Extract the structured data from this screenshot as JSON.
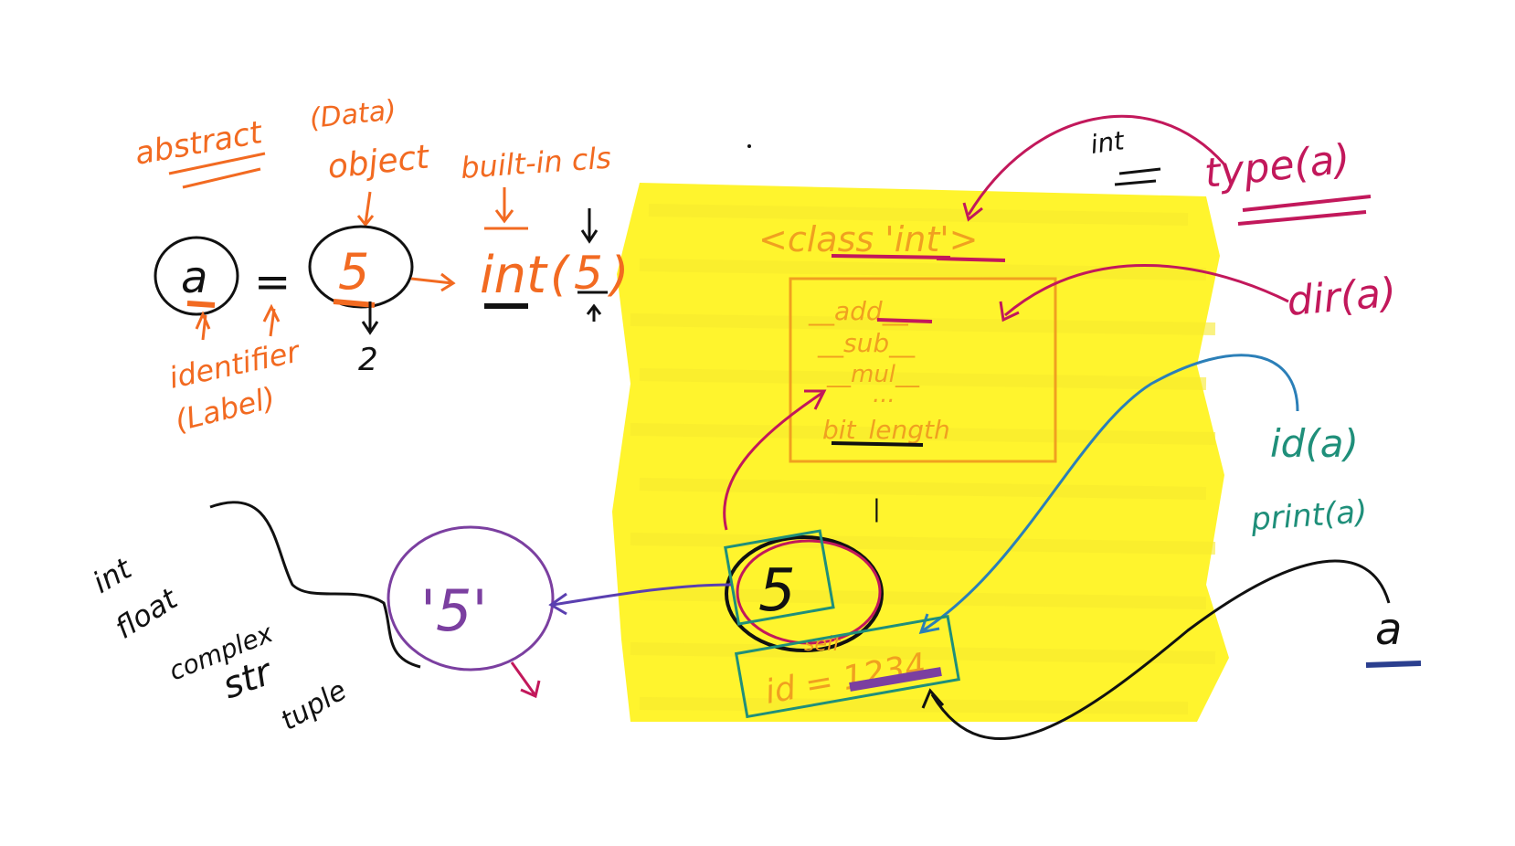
{
  "colors": {
    "background": "#ffffff",
    "highlight": "#fff200",
    "orange": "#f26a21",
    "amber": "#f0a020",
    "magenta": "#c2185b",
    "black": "#111111",
    "teal": "#1f8f7a",
    "purple": "#7b3fa0"
  },
  "notes": {
    "abstract": "abstract",
    "data": "(Data)",
    "object": "object",
    "builtin_class": "built-in cls",
    "identifier": "identifier",
    "label": "(Label)",
    "assign_var": "a",
    "equals": "=",
    "value": "5",
    "int_call_name": "int",
    "int_call_arg": "5",
    "memory_hint": "2",
    "int_type": "int",
    "type_call": "type(a)",
    "dir_call": "dir(a)",
    "id_call": "id(a)",
    "print_call": "print(a)",
    "class_header": "<class 'int'>",
    "methods": [
      "__add__",
      "__sub__",
      "__mul__",
      "...",
      "bit_length"
    ],
    "object_value": "5",
    "object_id": "id = 1234",
    "self_label": "self",
    "var_right": "a",
    "type_list": [
      "int",
      "float",
      "complex",
      "str",
      "tuple"
    ],
    "alt_value": "'5'"
  }
}
